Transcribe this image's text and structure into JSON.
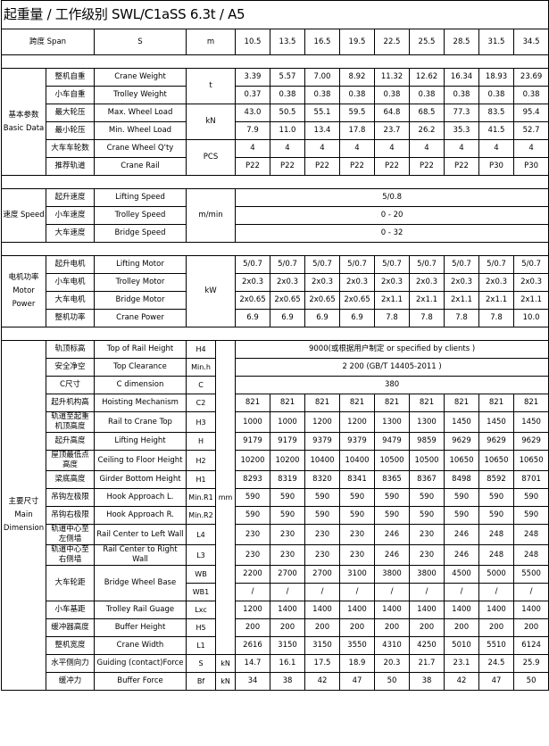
{
  "title": "起重量 / 工作级别  SWL/C1aSS 6.3t / A5",
  "span_row": {
    "label": "跨度  Span",
    "sym": "S",
    "unit": "m",
    "values": [
      "10.5",
      "13.5",
      "16.5",
      "19.5",
      "22.5",
      "25.5",
      "28.5",
      "31.5",
      "34.5"
    ]
  },
  "sections": [
    {
      "group": "基本参数 Basic Data",
      "rows": [
        {
          "cn": "整机自重",
          "en": "Crane Weight",
          "unit": "t",
          "unit_rows": 2,
          "values": [
            "3.39",
            "5.57",
            "7.00",
            "8.92",
            "11.32",
            "12.62",
            "16.34",
            "18.93",
            "23.69"
          ]
        },
        {
          "cn": "小车自重",
          "en": "Trolley Weight",
          "values": [
            "0.37",
            "0.38",
            "0.38",
            "0.38",
            "0.38",
            "0.38",
            "0.38",
            "0.38",
            "0.38"
          ]
        },
        {
          "cn": "最大轮压",
          "en": "Max. Wheel Load",
          "unit": "kN",
          "unit_rows": 2,
          "values": [
            "43.0",
            "50.5",
            "55.1",
            "59.5",
            "64.8",
            "68.5",
            "77.3",
            "83.5",
            "95.4"
          ]
        },
        {
          "cn": "最小轮压",
          "en": "Min. Wheel Load",
          "values": [
            "7.9",
            "11.0",
            "13.4",
            "17.8",
            "23.7",
            "26.2",
            "35.3",
            "41.5",
            "52.7"
          ]
        },
        {
          "cn": "大车车轮数",
          "en": "Crane Wheel Q'ty",
          "unit": "PCS",
          "unit_rows": 2,
          "values": [
            "4",
            "4",
            "4",
            "4",
            "4",
            "4",
            "4",
            "4",
            "4"
          ]
        },
        {
          "cn": "推荐轨道",
          "en": "Crane Rail",
          "values": [
            "P22",
            "P22",
            "P22",
            "P22",
            "P22",
            "P22",
            "P22",
            "P30",
            "P30"
          ]
        }
      ]
    },
    {
      "group": "速度 Speed",
      "rows": [
        {
          "cn": "起升速度",
          "en": "Lifting Speed",
          "unit": "m/min",
          "unit_rows": 3,
          "merged_value": "5/0.8"
        },
        {
          "cn": "小车速度",
          "en": "Trolley Speed",
          "merged_value": "0 - 20"
        },
        {
          "cn": "大车速度",
          "en": "Bridge Speed",
          "merged_value": "0 - 32"
        }
      ]
    },
    {
      "group": "电机功率 Motor Power",
      "rows": [
        {
          "cn": "起升电机",
          "en": "Lifting Motor",
          "unit": "kW",
          "unit_rows": 4,
          "values": [
            "5/0.7",
            "5/0.7",
            "5/0.7",
            "5/0.7",
            "5/0.7",
            "5/0.7",
            "5/0.7",
            "5/0.7",
            "5/0.7"
          ]
        },
        {
          "cn": "小车电机",
          "en": "Trolley Motor",
          "values": [
            "2x0.3",
            "2x0.3",
            "2x0.3",
            "2x0.3",
            "2x0.3",
            "2x0.3",
            "2x0.3",
            "2x0.3",
            "2x0.3"
          ]
        },
        {
          "cn": "大车电机",
          "en": "Bridge Motor",
          "values": [
            "2x0.65",
            "2x0.65",
            "2x0.65",
            "2x0.65",
            "2x1.1",
            "2x1.1",
            "2x1.1",
            "2x1.1",
            "2x1.1"
          ]
        },
        {
          "cn": "整机功率",
          "en": "Crane Power",
          "values": [
            "6.9",
            "6.9",
            "6.9",
            "6.9",
            "7.8",
            "7.8",
            "7.8",
            "7.8",
            "10.0"
          ]
        }
      ]
    },
    {
      "group": "主要尺寸 Main Dimension",
      "split_units": true,
      "rows": [
        {
          "cn": "轨顶标高",
          "en": "Top of Rail Height",
          "sym": "H4",
          "unit": "mm",
          "unit_rows": 17,
          "merged_value": "9000(或根据用户制定  or specified  by clients )"
        },
        {
          "cn": "安全净空",
          "en": "Top Clearance",
          "sym": "Min.h",
          "merged_value": "2 200 (GB/T 14405-2011 )"
        },
        {
          "cn": "C尺寸",
          "en": "C dimension",
          "sym": "C",
          "merged_value": "380"
        },
        {
          "cn": "起升机构高",
          "en": "Hoisting Mechanism",
          "sym": "C2",
          "values": [
            "821",
            "821",
            "821",
            "821",
            "821",
            "821",
            "821",
            "821",
            "821"
          ]
        },
        {
          "cn": "轨道至起重 机顶高度",
          "en": "Rail to Crane Top",
          "sym": "H3",
          "values": [
            "1000",
            "1000",
            "1200",
            "1200",
            "1300",
            "1300",
            "1450",
            "1450",
            "1450"
          ]
        },
        {
          "cn": "起升高度",
          "en": "Lifting Height",
          "sym": "H",
          "values": [
            "9179",
            "9179",
            "9379",
            "9379",
            "9479",
            "9859",
            "9629",
            "9629",
            "9629"
          ]
        },
        {
          "cn": "屋顶最低点 高度",
          "en": "Ceiling to Floor Height",
          "sym": "H2",
          "values": [
            "10200",
            "10200",
            "10400",
            "10400",
            "10500",
            "10500",
            "10650",
            "10650",
            "10650"
          ]
        },
        {
          "cn": "梁底高度",
          "en": "Girder Bottom Height",
          "sym": "H1",
          "values": [
            "8293",
            "8319",
            "8320",
            "8341",
            "8365",
            "8367",
            "8498",
            "8592",
            "8701"
          ]
        },
        {
          "cn": "吊钩左极限",
          "en": "Hook Approach L.",
          "sym": "Min.R1",
          "values": [
            "590",
            "590",
            "590",
            "590",
            "590",
            "590",
            "590",
            "590",
            "590"
          ]
        },
        {
          "cn": "吊钩右极限",
          "en": "Hook Approach R.",
          "sym": "Min.R2",
          "values": [
            "590",
            "590",
            "590",
            "590",
            "590",
            "590",
            "590",
            "590",
            "590"
          ]
        },
        {
          "cn": "轨道中心至 左侧墙",
          "en": "Rail Center to Left Wall",
          "sym": "L4",
          "values": [
            "230",
            "230",
            "230",
            "230",
            "246",
            "230",
            "246",
            "248",
            "248"
          ]
        },
        {
          "cn": "轨道中心至 右侧墙",
          "en": "Rail Center to Right Wall",
          "sym": "L3",
          "values": [
            "230",
            "230",
            "230",
            "230",
            "246",
            "230",
            "246",
            "248",
            "248"
          ]
        },
        {
          "cn": "大车轮距",
          "en": "Bridge Wheel Base",
          "label_rows": 2,
          "sym": "WB",
          "values": [
            "2200",
            "2700",
            "2700",
            "3100",
            "3800",
            "3800",
            "4500",
            "5000",
            "5500"
          ]
        },
        {
          "sym": "WB1",
          "values": [
            "/",
            "/",
            "/",
            "/",
            "/",
            "/",
            "/",
            "/",
            "/"
          ]
        },
        {
          "cn": "小车基距",
          "en": "Trolley Rail Guage",
          "sym": "Lxc",
          "values": [
            "1200",
            "1400",
            "1400",
            "1400",
            "1400",
            "1400",
            "1400",
            "1400",
            "1400"
          ]
        },
        {
          "cn": "缓冲器高度",
          "en": "Buffer Height",
          "sym": "H5",
          "values": [
            "200",
            "200",
            "200",
            "200",
            "200",
            "200",
            "200",
            "200",
            "200"
          ]
        },
        {
          "cn": "整机宽度",
          "en": "Crane Width",
          "sym": "L1",
          "values": [
            "2616",
            "3150",
            "3150",
            "3550",
            "4310",
            "4250",
            "5010",
            "5510",
            "6124"
          ]
        },
        {
          "cn": "水平侧向力",
          "en": "Guiding (contact)Force",
          "sym": "S",
          "unit": "kN",
          "unit_rows": 1,
          "values": [
            "14.7",
            "16.1",
            "17.5",
            "18.9",
            "20.3",
            "21.7",
            "23.1",
            "24.5",
            "25.9"
          ]
        },
        {
          "cn": "缓冲力",
          "en": "Buffer Force",
          "sym": "Bf",
          "unit": "kN",
          "unit_rows": 1,
          "values": [
            "34",
            "38",
            "42",
            "47",
            "50",
            "38",
            "42",
            "47",
            "50"
          ]
        }
      ]
    }
  ]
}
